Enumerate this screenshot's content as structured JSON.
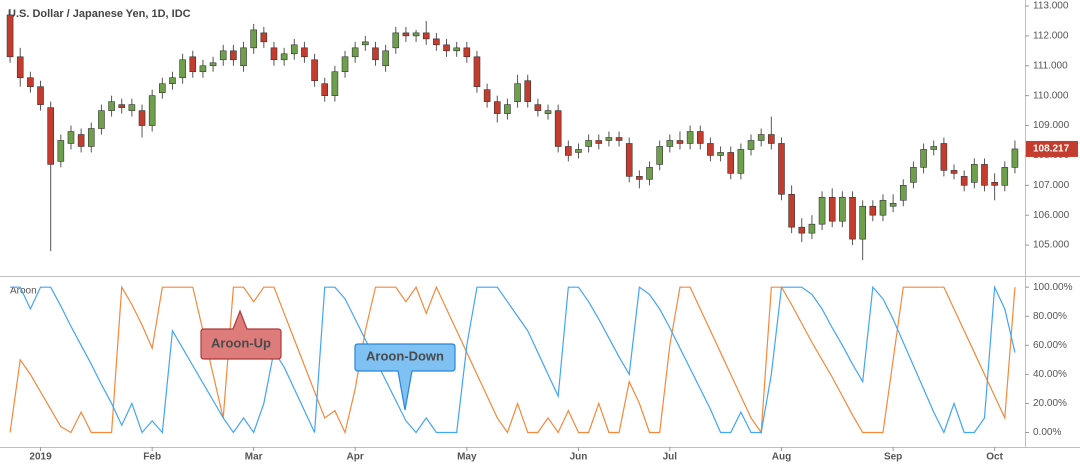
{
  "chart_data": [
    {
      "type": "candlestick",
      "title": "U.S. Dollar / Japanese Yen, 1D, IDC",
      "up_color": "#6ea04b",
      "down_color": "#c43c2e",
      "ylim": [
        104.0,
        113.2
      ],
      "yticks": [
        {
          "value": 105,
          "label": "105.000"
        },
        {
          "value": 106,
          "label": "106.000"
        },
        {
          "value": 107,
          "label": "107.000"
        },
        {
          "value": 108,
          "label": "108.000"
        },
        {
          "value": 109,
          "label": "109.000"
        },
        {
          "value": 110,
          "label": "110.000"
        },
        {
          "value": 111,
          "label": "111.000"
        },
        {
          "value": 112,
          "label": "112.000"
        },
        {
          "value": 113,
          "label": "113.000"
        }
      ],
      "open": [
        112.7,
        111.3,
        110.6,
        110.3,
        109.6,
        107.8,
        108.4,
        108.7,
        108.3,
        108.9,
        109.5,
        109.7,
        109.5,
        109.5,
        109.0,
        110.1,
        110.4,
        110.6,
        111.3,
        110.8,
        111.0,
        111.2,
        111.5,
        111.0,
        111.6,
        112.1,
        111.6,
        111.2,
        111.4,
        111.6,
        111.2,
        110.4,
        110.0,
        110.8,
        111.3,
        111.7,
        111.6,
        111.0,
        111.6,
        112.1,
        112.0,
        112.1,
        111.9,
        111.7,
        111.5,
        111.6,
        111.3,
        110.2,
        109.8,
        109.4,
        109.8,
        110.5,
        109.7,
        109.4,
        109.5,
        108.3,
        108.1,
        108.3,
        108.5,
        108.5,
        108.6,
        108.4,
        107.3,
        107.2,
        107.7,
        108.3,
        108.5,
        108.4,
        108.8,
        108.4,
        108.0,
        108.1,
        107.4,
        108.2,
        108.5,
        108.7,
        108.4,
        106.7,
        105.6,
        105.4,
        105.7,
        106.6,
        105.8,
        106.6,
        105.2,
        106.3,
        106.0,
        106.3,
        106.5,
        107.1,
        107.6,
        108.2,
        108.4,
        107.5,
        107.3,
        107.1,
        107.7,
        107.1,
        107.0,
        107.6
      ],
      "high": [
        112.9,
        111.6,
        110.8,
        110.5,
        109.8,
        108.7,
        109.0,
        108.9,
        109.1,
        109.7,
        110.0,
        109.9,
        109.9,
        109.7,
        110.2,
        110.6,
        110.8,
        111.4,
        111.5,
        111.2,
        111.3,
        111.7,
        111.7,
        111.8,
        112.4,
        112.3,
        111.8,
        111.6,
        111.9,
        111.8,
        111.4,
        110.6,
        111.0,
        111.5,
        111.8,
        112.0,
        111.8,
        111.7,
        112.3,
        112.3,
        112.2,
        112.5,
        112.1,
        111.9,
        111.8,
        111.8,
        111.5,
        110.4,
        110.0,
        109.9,
        110.7,
        110.7,
        109.9,
        109.7,
        109.7,
        108.5,
        108.4,
        108.7,
        108.7,
        108.8,
        108.8,
        108.6,
        107.5,
        107.8,
        108.5,
        108.7,
        108.8,
        109.0,
        109.0,
        108.6,
        108.3,
        108.3,
        108.4,
        108.7,
        108.9,
        109.3,
        108.6,
        107.0,
        105.9,
        106.0,
        106.8,
        106.9,
        106.8,
        106.8,
        106.5,
        106.5,
        106.7,
        106.7,
        107.2,
        107.8,
        108.4,
        108.5,
        108.6,
        107.7,
        107.5,
        107.9,
        107.9,
        107.4,
        107.8,
        108.5
      ],
      "low": [
        111.1,
        110.3,
        110.1,
        109.5,
        104.8,
        107.6,
        108.2,
        108.1,
        108.1,
        108.7,
        109.3,
        109.4,
        109.3,
        108.6,
        108.8,
        109.9,
        110.2,
        110.4,
        110.6,
        110.6,
        110.8,
        111.0,
        111.0,
        110.8,
        111.4,
        111.6,
        111.0,
        111.0,
        111.2,
        111.1,
        110.3,
        109.8,
        109.8,
        110.6,
        111.1,
        111.5,
        111.0,
        110.8,
        111.4,
        111.8,
        111.8,
        111.7,
        111.5,
        111.3,
        111.3,
        111.1,
        110.1,
        109.6,
        109.1,
        109.2,
        109.6,
        109.6,
        109.3,
        109.2,
        108.1,
        107.8,
        107.9,
        108.1,
        108.2,
        108.3,
        108.3,
        107.1,
        106.9,
        107.0,
        107.5,
        108.1,
        108.2,
        108.2,
        108.2,
        107.8,
        107.8,
        107.2,
        107.2,
        108.0,
        108.3,
        108.2,
        106.5,
        105.4,
        105.1,
        105.2,
        105.5,
        105.6,
        105.6,
        105.0,
        104.5,
        105.8,
        105.8,
        106.1,
        106.3,
        106.9,
        107.4,
        108.0,
        107.3,
        107.2,
        106.8,
        106.9,
        106.8,
        106.5,
        106.8,
        107.4
      ],
      "close": [
        111.3,
        110.6,
        110.3,
        109.7,
        107.7,
        108.5,
        108.8,
        108.3,
        108.9,
        109.5,
        109.8,
        109.6,
        109.7,
        109.0,
        110.0,
        110.4,
        110.6,
        111.2,
        110.8,
        111.0,
        111.1,
        111.5,
        111.2,
        111.6,
        112.2,
        111.8,
        111.2,
        111.4,
        111.7,
        111.3,
        110.5,
        110.0,
        110.8,
        111.3,
        111.6,
        111.8,
        111.2,
        111.5,
        112.1,
        112.0,
        112.1,
        111.9,
        111.7,
        111.5,
        111.6,
        111.3,
        110.3,
        109.8,
        109.4,
        109.7,
        110.4,
        109.8,
        109.5,
        109.5,
        108.3,
        108.0,
        108.2,
        108.5,
        108.4,
        108.6,
        108.5,
        107.3,
        107.2,
        107.6,
        108.3,
        108.5,
        108.4,
        108.8,
        108.4,
        108.0,
        108.1,
        107.4,
        108.2,
        108.5,
        108.7,
        108.4,
        106.7,
        105.6,
        105.4,
        105.7,
        106.6,
        105.8,
        106.6,
        105.2,
        106.3,
        106.0,
        106.5,
        106.4,
        107.0,
        107.6,
        108.2,
        108.3,
        107.5,
        107.4,
        107.0,
        107.7,
        107.0,
        107.0,
        107.6,
        108.217
      ]
    },
    {
      "type": "line",
      "title": "Aroon",
      "categories": [
        null,
        null,
        null,
        "2019",
        null,
        null,
        null,
        null,
        null,
        null,
        null,
        null,
        null,
        null,
        "Feb",
        null,
        null,
        null,
        null,
        null,
        null,
        null,
        null,
        null,
        "Mar",
        null,
        null,
        null,
        null,
        null,
        null,
        null,
        null,
        null,
        "Apr",
        null,
        null,
        null,
        null,
        null,
        null,
        null,
        null,
        null,
        null,
        "May",
        null,
        null,
        null,
        null,
        null,
        null,
        null,
        null,
        null,
        null,
        "Jun",
        null,
        null,
        null,
        null,
        null,
        null,
        null,
        null,
        "Jul",
        null,
        null,
        null,
        null,
        null,
        null,
        null,
        null,
        null,
        null,
        "Aug",
        null,
        null,
        null,
        null,
        null,
        null,
        null,
        null,
        null,
        null,
        "Sep",
        null,
        null,
        null,
        null,
        null,
        null,
        null,
        null,
        null,
        "Oct",
        null,
        null
      ],
      "ylim": [
        -10,
        107
      ],
      "yticks": [
        {
          "value": 0,
          "label": "0.00%"
        },
        {
          "value": 20,
          "label": "20.00%"
        },
        {
          "value": 40,
          "label": "40.00%"
        },
        {
          "value": 60,
          "label": "60.00%"
        },
        {
          "value": 80,
          "label": "80.00%"
        },
        {
          "value": 100,
          "label": "100.00%"
        }
      ],
      "series": [
        {
          "name": "Aroon-Up",
          "color": "#f5883b",
          "values": [
            0,
            50,
            40,
            28,
            16,
            4,
            0,
            14,
            0,
            0,
            0,
            100,
            88,
            74,
            58,
            100,
            100,
            100,
            100,
            70,
            40,
            10,
            100,
            100,
            90,
            100,
            100,
            82,
            64,
            46,
            28,
            10,
            15,
            0,
            30,
            70,
            100,
            100,
            100,
            90,
            100,
            82,
            100,
            85,
            70,
            55,
            40,
            25,
            10,
            0,
            20,
            0,
            0,
            10,
            0,
            15,
            0,
            0,
            20,
            0,
            0,
            35,
            20,
            0,
            0,
            60,
            100,
            100,
            85,
            70,
            55,
            40,
            25,
            10,
            0,
            100,
            100,
            88,
            75,
            62,
            50,
            38,
            25,
            12,
            0,
            0,
            0,
            50,
            100,
            100,
            100,
            100,
            100,
            85,
            70,
            55,
            40,
            25,
            10,
            100
          ]
        },
        {
          "name": "Aroon-Down",
          "color": "#42a5f5",
          "values": [
            100,
            100,
            85,
            100,
            100,
            87,
            73,
            60,
            47,
            33,
            20,
            5,
            20,
            0,
            8,
            0,
            70,
            58,
            46,
            34,
            22,
            10,
            0,
            10,
            0,
            20,
            56,
            45,
            30,
            15,
            0,
            100,
            100,
            92,
            78,
            64,
            50,
            36,
            22,
            8,
            0,
            10,
            0,
            0,
            0,
            60,
            100,
            100,
            100,
            90,
            80,
            70,
            55,
            40,
            25,
            100,
            100,
            90,
            78,
            65,
            52,
            40,
            100,
            95,
            85,
            72,
            58,
            44,
            30,
            16,
            0,
            0,
            14,
            0,
            0,
            40,
            100,
            100,
            100,
            95,
            85,
            72,
            60,
            47,
            35,
            100,
            92,
            78,
            62,
            46,
            30,
            14,
            0,
            20,
            0,
            0,
            10,
            100,
            85,
            55
          ]
        }
      ]
    }
  ]
}
